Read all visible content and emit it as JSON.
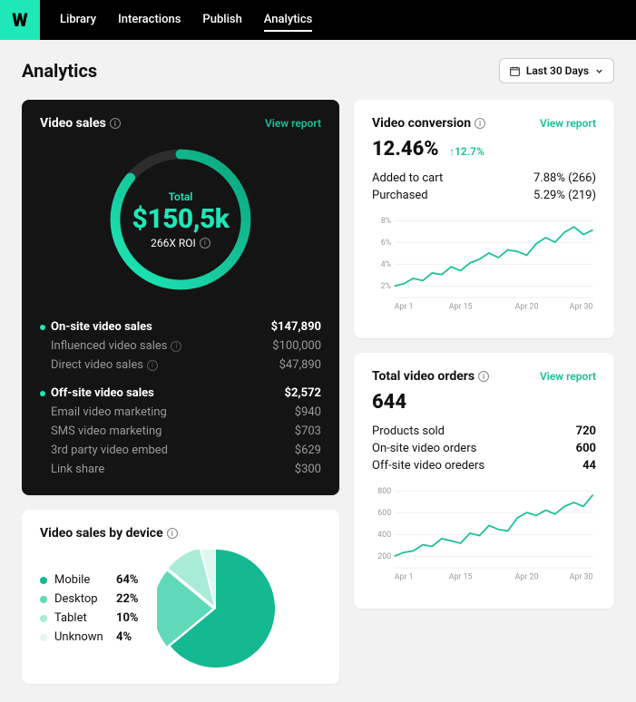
{
  "brand": {
    "logo_letter": "W",
    "logo_bg": "#1ee8b7"
  },
  "nav": {
    "items": [
      "Library",
      "Interactions",
      "Publish",
      "Analytics"
    ],
    "active_index": 3
  },
  "page": {
    "title": "Analytics"
  },
  "date_picker": {
    "label": "Last 30 Days"
  },
  "colors": {
    "accent": "#1ee8b7",
    "accent_dark": "#17c197",
    "dark_bg": "#141414",
    "page_bg": "#f2f2f2",
    "muted": "#999999"
  },
  "video_sales": {
    "title": "Video sales",
    "view_report": "View report",
    "donut": {
      "total_label": "Total",
      "value": "$150,5k",
      "roi": "266X ROI",
      "stroke_width": 12,
      "fill_pct": 0.86,
      "ring_bg": "#2d2d2d",
      "ring_fg_start": "#1ee8b7",
      "ring_fg_end": "#0aa57d"
    },
    "onsite": {
      "label": "On-site video sales",
      "value": "$147,890",
      "rows": [
        {
          "label": "Influenced video sales",
          "value": "$100,000",
          "info": true
        },
        {
          "label": "Direct video sales",
          "value": "$47,890",
          "info": true
        }
      ]
    },
    "offsite": {
      "label": "Off-site video sales",
      "value": "$2,572",
      "rows": [
        {
          "label": "Email video marketing",
          "value": "$940"
        },
        {
          "label": "SMS video marketing",
          "value": "$703"
        },
        {
          "label": "3rd party video embed",
          "value": "$629"
        },
        {
          "label": "Link share",
          "value": "$300"
        }
      ]
    }
  },
  "video_conversion": {
    "title": "Video conversion",
    "view_report": "View report",
    "headline": "12.46%",
    "delta": "12.7%",
    "rows": [
      {
        "label": "Added to cart",
        "pct": "7.88%",
        "count": "(266)"
      },
      {
        "label": "Purchased",
        "pct": "5.29%",
        "count": "(219)"
      }
    ],
    "chart": {
      "y_ticks": [
        "8%",
        "6%",
        "4%",
        "2%"
      ],
      "x_ticks": [
        "Apr 1",
        "Apr 15",
        "Apr 20",
        "Apr 30"
      ],
      "line_color": "#17c197",
      "grid_color": "#eeeeee",
      "points": [
        0.15,
        0.18,
        0.25,
        0.22,
        0.32,
        0.3,
        0.4,
        0.35,
        0.45,
        0.5,
        0.58,
        0.52,
        0.62,
        0.6,
        0.55,
        0.7,
        0.78,
        0.72,
        0.85,
        0.92,
        0.82,
        0.88
      ]
    }
  },
  "total_orders": {
    "title": "Total video orders",
    "view_report": "View report",
    "headline": "644",
    "rows": [
      {
        "label": "Products sold",
        "value": "720"
      },
      {
        "label": "On-site video orders",
        "value": "600"
      },
      {
        "label": "Off-site video oreders",
        "value": "44"
      }
    ],
    "chart": {
      "y_ticks": [
        "800",
        "600",
        "400",
        "200"
      ],
      "x_ticks": [
        "Apr 1",
        "Apr 15",
        "Apr 20",
        "Apr 30"
      ],
      "line_color": "#17c197",
      "grid_color": "#eeeeee",
      "points": [
        0.15,
        0.2,
        0.22,
        0.3,
        0.28,
        0.38,
        0.35,
        0.32,
        0.45,
        0.42,
        0.55,
        0.5,
        0.48,
        0.65,
        0.72,
        0.68,
        0.75,
        0.7,
        0.8,
        0.85,
        0.8,
        0.95
      ]
    }
  },
  "by_device": {
    "title": "Video sales by device",
    "rows": [
      {
        "name": "Mobile",
        "pct": "64%",
        "color": "#14b891",
        "slice": 64
      },
      {
        "name": "Desktop",
        "pct": "22%",
        "color": "#5fd9b8",
        "slice": 22
      },
      {
        "name": "Tablet",
        "pct": "10%",
        "color": "#a8ecd8",
        "slice": 10
      },
      {
        "name": "Unknown",
        "pct": "4%",
        "color": "#dff7ef",
        "slice": 4
      }
    ]
  }
}
